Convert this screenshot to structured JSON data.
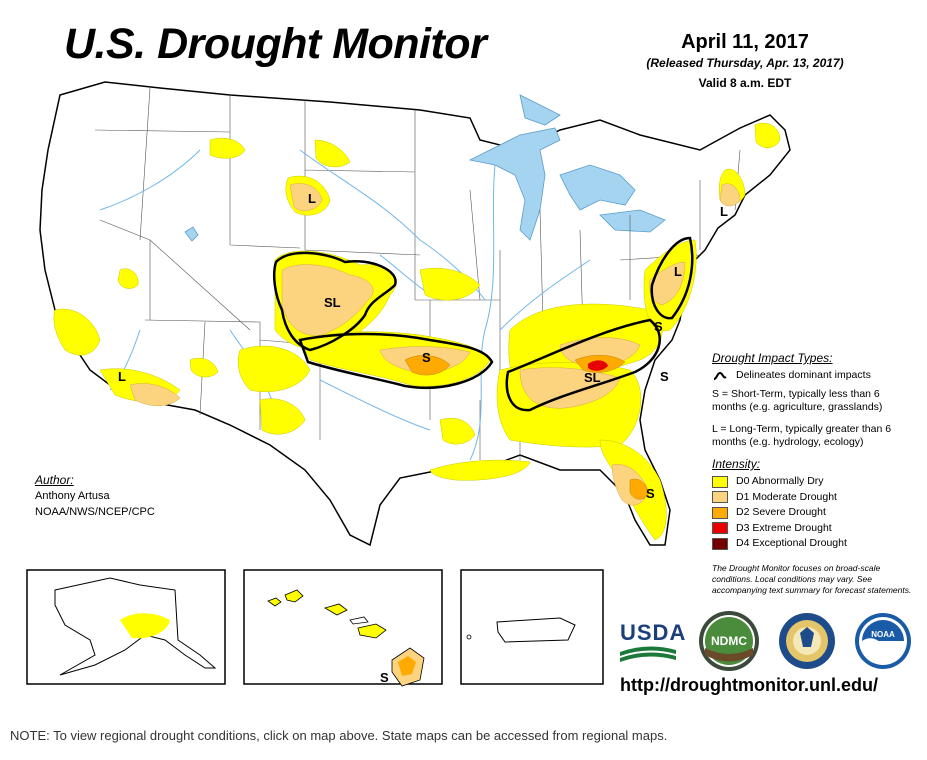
{
  "header": {
    "title": "U.S. Drought Monitor",
    "date": "April 11, 2017",
    "released": "(Released Thursday, Apr. 13, 2017)",
    "valid": "Valid 8 a.m. EDT"
  },
  "author": {
    "heading": "Author:",
    "name": "Anthony Artusa",
    "org": "NOAA/NWS/NCEP/CPC"
  },
  "legend": {
    "impact_heading": "Drought Impact Types:",
    "delineates": "Delineates dominant impacts",
    "short_term": "S = Short-Term, typically less than 6 months (e.g. agriculture, grasslands)",
    "long_term": "L = Long-Term, typically greater than 6 months (e.g. hydrology, ecology)",
    "intensity_heading": "Intensity:",
    "intensity": [
      {
        "label": "D0 Abnormally Dry",
        "color": "#ffff00"
      },
      {
        "label": "D1 Moderate Drought",
        "color": "#fcd37f"
      },
      {
        "label": "D2 Severe Drought",
        "color": "#ffaa00"
      },
      {
        "label": "D3 Extreme Drought",
        "color": "#e60000"
      },
      {
        "label": "D4 Exceptional Drought",
        "color": "#730000"
      }
    ]
  },
  "disclaimer": "The Drought Monitor focuses on broad-scale conditions. Local conditions may vary. See accompanying text summary for forecast statements.",
  "logos": {
    "usda": "USDA",
    "ndmc": "NDMC",
    "noaa": "NOAA"
  },
  "url": "http://droughtmonitor.unl.edu/",
  "note": "NOTE: To view regional drought conditions, click on map above. State maps can be accessed from regional maps.",
  "map_labels": {
    "north_plains": "L",
    "central_plains": "SL",
    "southern_plains": "S",
    "southern_california": "L",
    "southeast": "SL",
    "mid_atlantic": "S",
    "carolinas": "S",
    "new_york": "L",
    "new_england": "L",
    "florida": "S",
    "hawaii": "S"
  },
  "colors": {
    "d0": "#ffff00",
    "d1": "#fcd37f",
    "d2": "#ffaa00",
    "d3": "#e60000",
    "d4": "#730000",
    "water": "#a4d4f0",
    "rivers": "#6fb7e8"
  }
}
